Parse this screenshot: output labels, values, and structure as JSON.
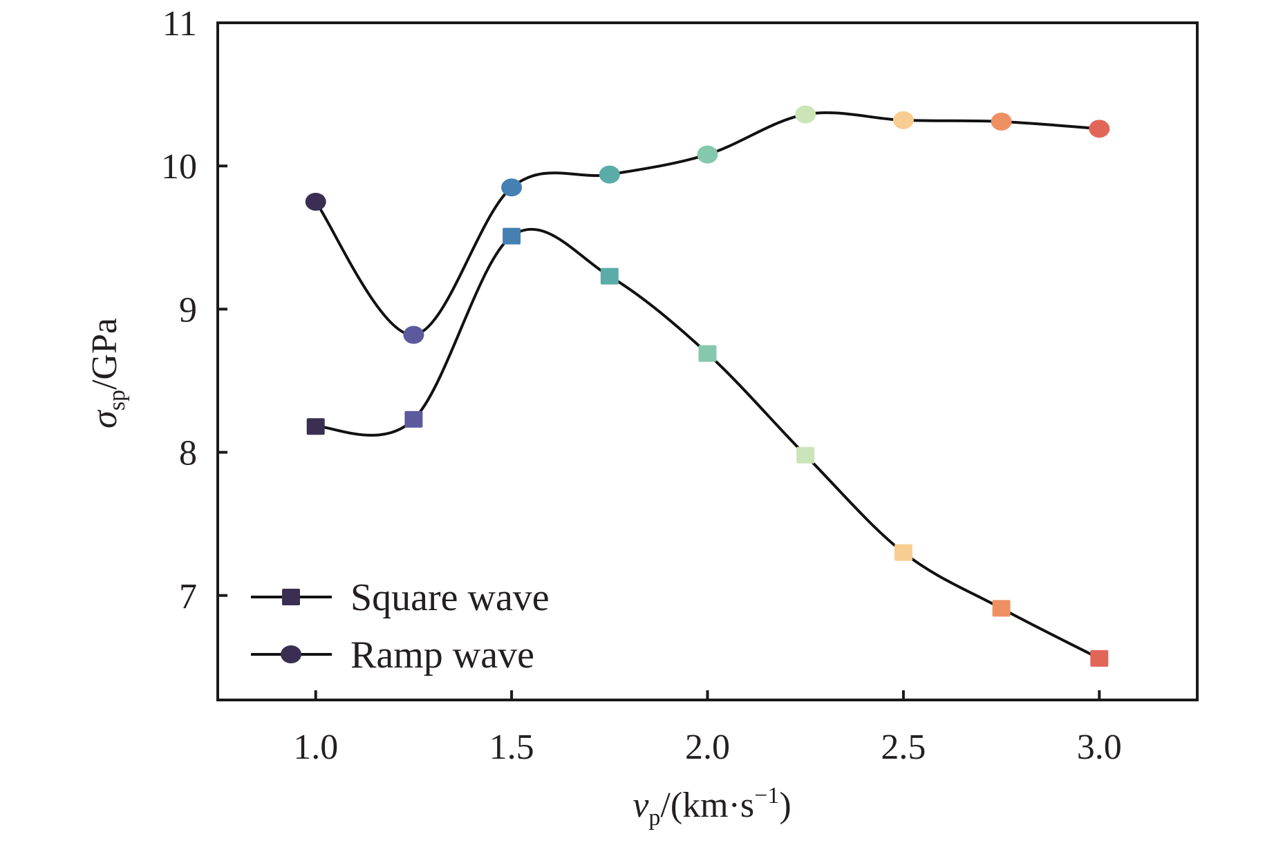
{
  "chart_data": {
    "type": "line",
    "title": "",
    "xlabel": {
      "main": "v",
      "sub": "p",
      "rest": "/(km·s",
      "sup": "−1",
      "close": ")"
    },
    "ylabel": {
      "main": "σ",
      "sub": "sp",
      "rest": "/GPa"
    },
    "xlim": [
      0.75,
      3.25
    ],
    "ylim": [
      6.27,
      11
    ],
    "x_ticks": [
      1.0,
      1.5,
      2.0,
      2.5,
      3.0
    ],
    "x_tick_labels": [
      "1.0",
      "1.5",
      "2.0",
      "2.5",
      "3.0"
    ],
    "y_ticks": [
      7,
      8,
      9,
      10,
      11
    ],
    "y_tick_labels": [
      "7",
      "8",
      "9",
      "10",
      "11"
    ],
    "grid": false,
    "legend_position": "bottom-left",
    "x": [
      1.0,
      1.25,
      1.5,
      1.75,
      2.0,
      2.25,
      2.5,
      2.75,
      3.0
    ],
    "point_colors": [
      "#3a2f52",
      "#5c5a9c",
      "#4680b3",
      "#5aaca8",
      "#85c8ad",
      "#cce5b8",
      "#f8cd92",
      "#ef9062",
      "#e26658"
    ],
    "series": [
      {
        "name": "Square wave",
        "marker": "square",
        "line_color": "#111111",
        "values": [
          8.18,
          8.23,
          9.51,
          9.23,
          8.69,
          7.98,
          7.3,
          6.91,
          6.56
        ]
      },
      {
        "name": "Ramp wave",
        "marker": "circle",
        "line_color": "#111111",
        "values": [
          9.75,
          8.82,
          9.85,
          9.94,
          10.08,
          10.36,
          10.32,
          10.31,
          10.26
        ]
      }
    ],
    "legend_marker_color": "#3a2f52"
  }
}
